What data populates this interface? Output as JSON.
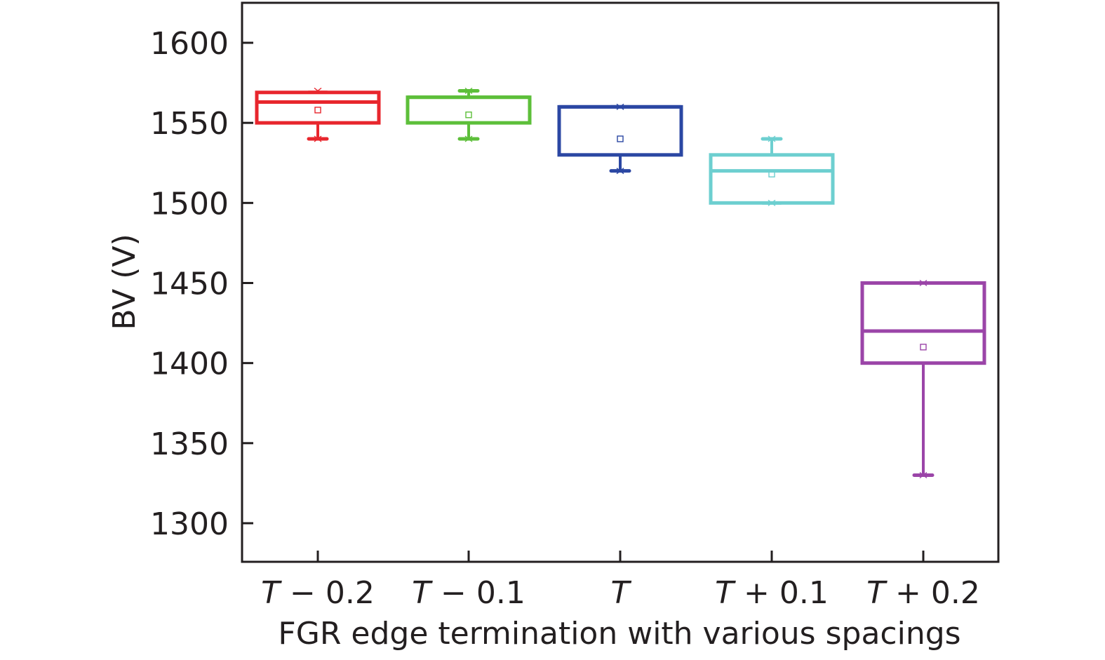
{
  "chart_data": {
    "type": "box",
    "xlabel": "FGR edge termination with various spacings",
    "ylabel": "BV (V)",
    "ylim": [
      1276,
      1626
    ],
    "yticks": [
      1300,
      1350,
      1400,
      1450,
      1500,
      1550,
      1600
    ],
    "ytick_labels": [
      "1300",
      "1350",
      "1400",
      "1450",
      "1500",
      "1550",
      "1600"
    ],
    "grid": false,
    "categories": [
      {
        "var": "T",
        "op": "−",
        "num": "0.2"
      },
      {
        "var": "T",
        "op": "−",
        "num": "0.1"
      },
      {
        "var": "T",
        "op": "",
        "num": ""
      },
      {
        "var": "T",
        "op": "+",
        "num": "0.1"
      },
      {
        "var": "T",
        "op": "+",
        "num": "0.2"
      }
    ],
    "series": [
      {
        "q1": 1550,
        "median": 1563,
        "q3": 1569,
        "mean": 1558,
        "whisker_low": 1540,
        "whisker_high": 1569,
        "min": 1540,
        "max": 1570,
        "color": "#e8262d"
      },
      {
        "q1": 1550,
        "median": 1566,
        "q3": 1566,
        "mean": 1555,
        "whisker_low": 1540,
        "whisker_high": 1570,
        "min": 1540,
        "max": 1570,
        "color": "#5dbf3a"
      },
      {
        "q1": 1530,
        "median": 1560,
        "q3": 1560,
        "mean": 1540,
        "whisker_low": 1520,
        "whisker_high": 1560,
        "min": 1520,
        "max": 1560,
        "color": "#2b47a3"
      },
      {
        "q1": 1500,
        "median": 1520,
        "q3": 1530,
        "mean": 1518,
        "whisker_low": 1500,
        "whisker_high": 1540,
        "min": 1500,
        "max": 1540,
        "color": "#6dcfd0"
      },
      {
        "q1": 1400,
        "median": 1420,
        "q3": 1450,
        "mean": 1410,
        "whisker_low": 1330,
        "whisker_high": 1450,
        "min": 1330,
        "max": 1450,
        "color": "#9b45a8"
      }
    ]
  }
}
